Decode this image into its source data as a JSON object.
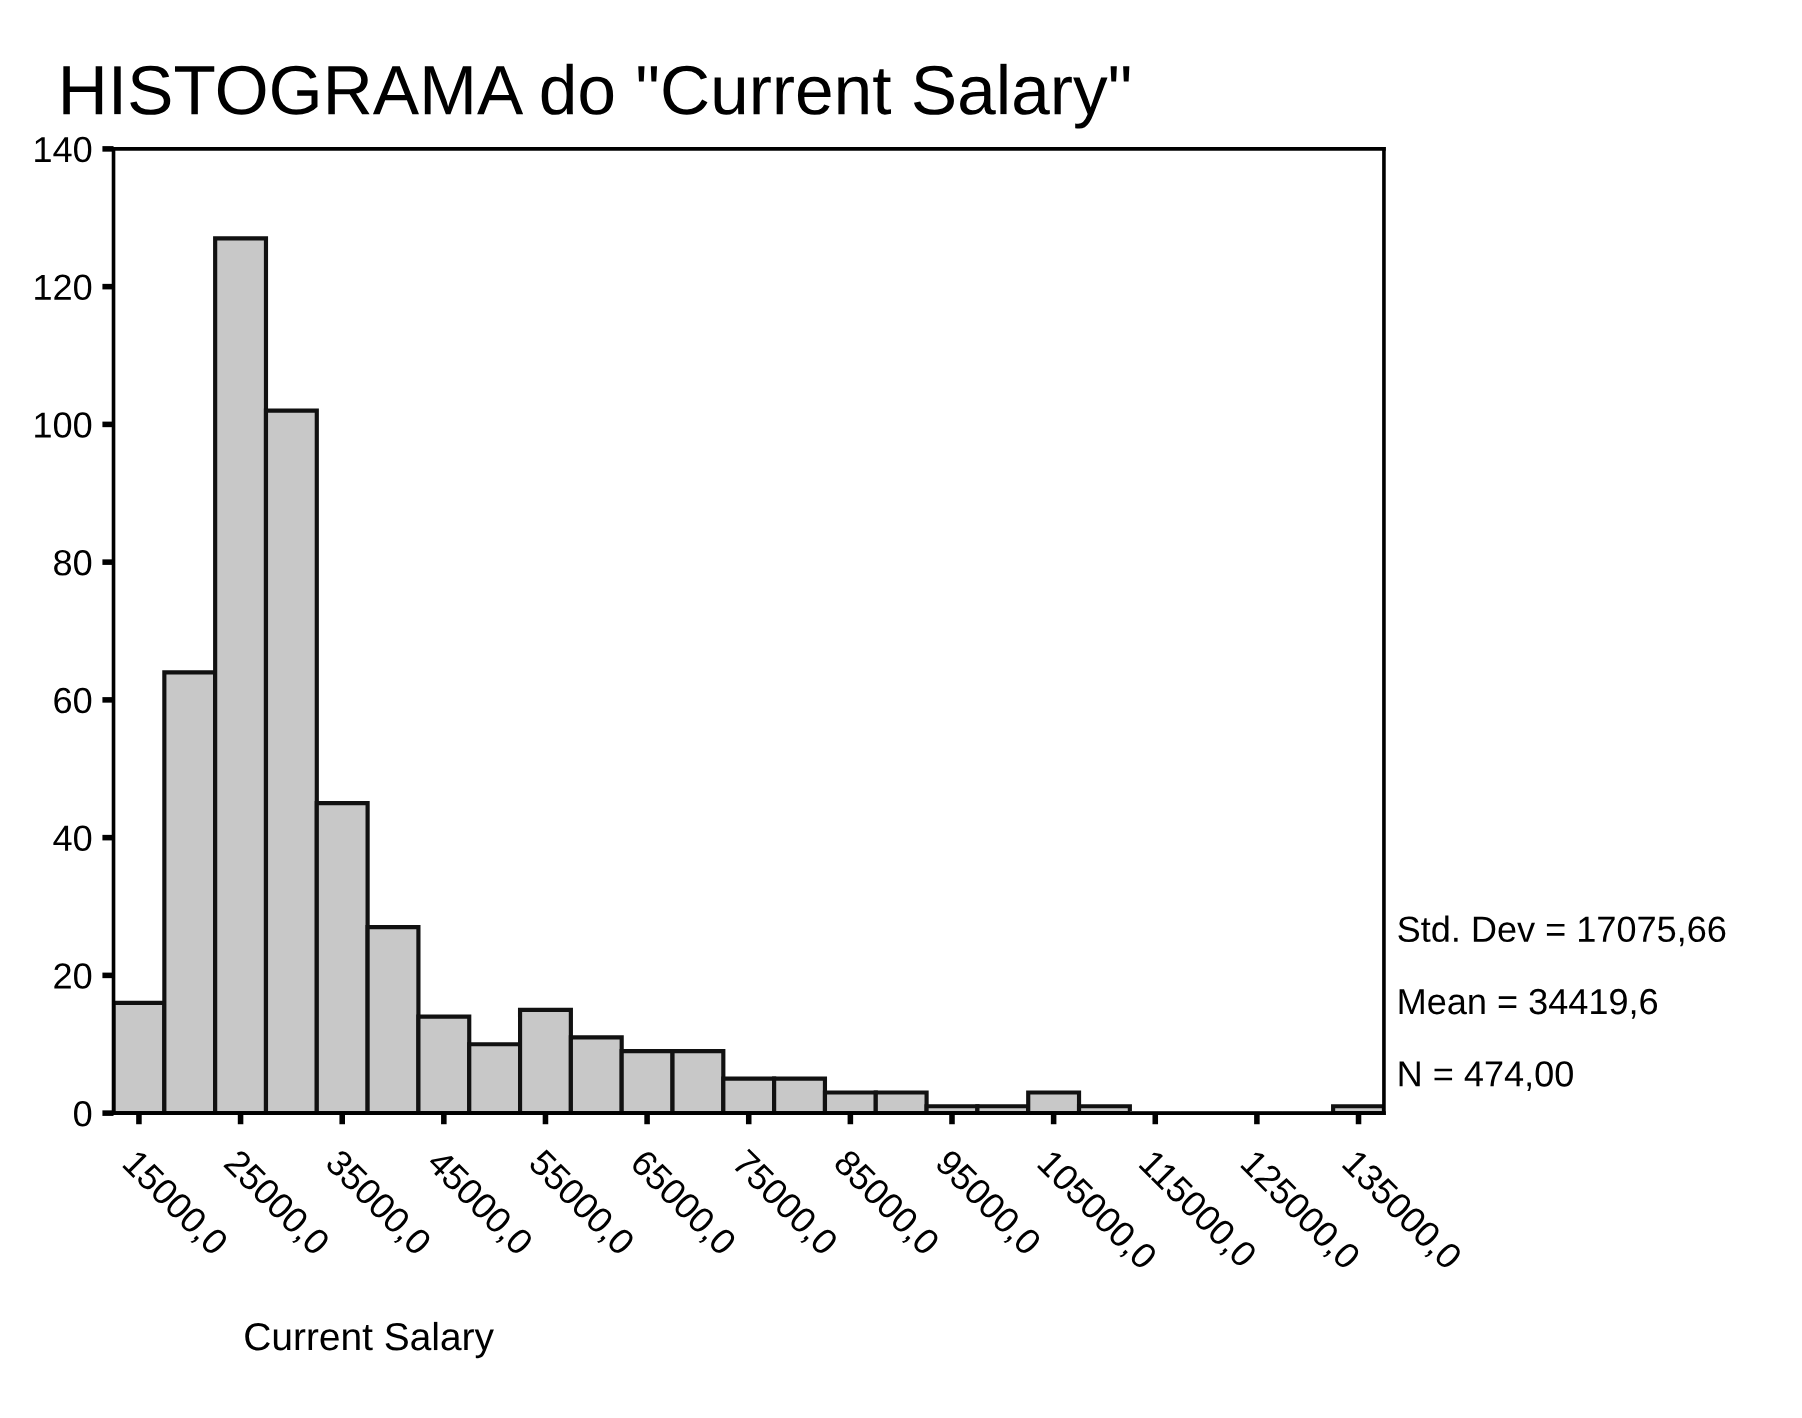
{
  "chart_data": {
    "type": "histogram",
    "title": "HISTOGRAMA do \"Current Salary\"",
    "xlabel": "Current Salary",
    "bins": [
      12500,
      17500,
      22500,
      27500,
      32500,
      37500,
      42500,
      47500,
      52500,
      57500,
      62500,
      67500,
      72500,
      77500,
      82500,
      87500,
      92500,
      97500,
      102500,
      107500,
      112500,
      117500,
      122500,
      127500,
      132500,
      137500
    ],
    "values": [
      16,
      64,
      127,
      102,
      45,
      27,
      14,
      10,
      15,
      11,
      9,
      9,
      5,
      5,
      3,
      3,
      1,
      1,
      3,
      1,
      0,
      0,
      0,
      0,
      1
    ],
    "color": "#c8c8c8",
    "xlim": [
      12500,
      137500
    ],
    "xticks": [
      {
        "value": 15000,
        "label": "15000,0"
      },
      {
        "value": 25000,
        "label": "25000,0"
      },
      {
        "value": 35000,
        "label": "35000,0"
      },
      {
        "value": 45000,
        "label": "45000,0"
      },
      {
        "value": 55000,
        "label": "55000,0"
      },
      {
        "value": 65000,
        "label": "65000,0"
      },
      {
        "value": 75000,
        "label": "75000,0"
      },
      {
        "value": 85000,
        "label": "85000,0"
      },
      {
        "value": 95000,
        "label": "95000,0"
      },
      {
        "value": 105000,
        "label": "105000,0"
      },
      {
        "value": 115000,
        "label": "115000,0"
      },
      {
        "value": 125000,
        "label": "125000,0"
      },
      {
        "value": 135000,
        "label": "135000,0"
      }
    ],
    "ylim": [
      0,
      140
    ],
    "yticks": [
      0,
      20,
      40,
      60,
      80,
      100,
      120,
      140
    ],
    "grid": false,
    "annotations": [
      "Std. Dev = 17075,66",
      "Mean = 34419,6",
      "N = 474,00"
    ]
  }
}
